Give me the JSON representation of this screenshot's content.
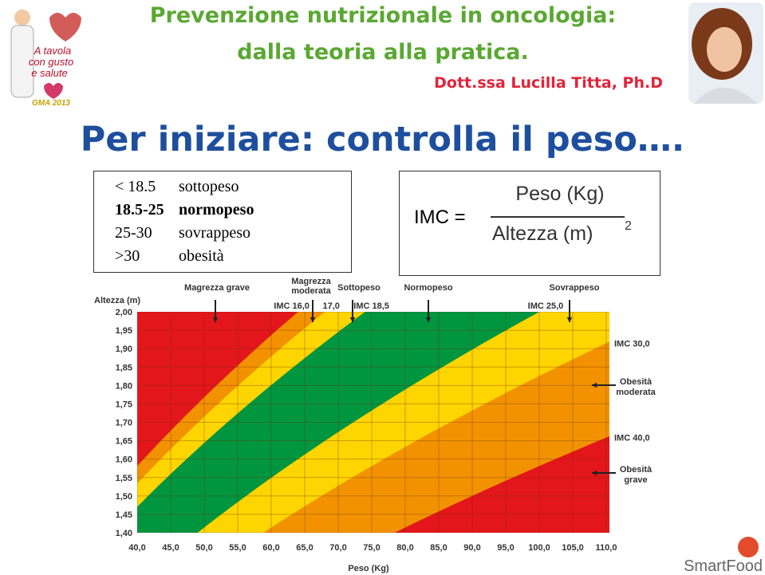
{
  "header": {
    "title_line1": "Prevenzione nutrizionale in oncologia:",
    "title_line2": "dalla teoria alla pratica.",
    "author": "Dott.ssa Lucilla Titta, Ph.D",
    "logo_text": [
      "A tavola",
      "con gusto",
      "e salute"
    ],
    "logo_year": "GMA 2013"
  },
  "heading": "Per iniziare: controlla il peso….",
  "ranges": [
    [
      "< 18.5",
      "sottopeso"
    ],
    [
      "18.5-25",
      "normopeso"
    ],
    [
      "25-30",
      "sovrappeso"
    ],
    [
      ">30",
      "obesità"
    ]
  ],
  "formula": {
    "lhs": "IMC =",
    "numerator": "Peso (Kg)",
    "denominator": "Altezza (m)",
    "exponent": "2"
  },
  "chart": {
    "ylabel": "Altezza (m)",
    "xlabel": "Peso (Kg)",
    "base_color": "#e3161b",
    "xticks": [
      {
        "value": 40,
        "label": "40,0"
      },
      {
        "value": 45,
        "label": "45,0"
      },
      {
        "value": 50,
        "label": "50,0"
      },
      {
        "value": 55,
        "label": "55,0"
      },
      {
        "value": 60,
        "label": "60,0"
      },
      {
        "value": 65,
        "label": "65,0"
      },
      {
        "value": 70,
        "label": "70,0"
      },
      {
        "value": 75,
        "label": "75,0"
      },
      {
        "value": 80,
        "label": "80,0"
      },
      {
        "value": 85,
        "label": "85,0"
      },
      {
        "value": 90,
        "label": "90,0"
      },
      {
        "value": 95,
        "label": "95,0"
      },
      {
        "value": 100,
        "label": "100,0"
      },
      {
        "value": 105,
        "label": "105,0"
      },
      {
        "value": 110,
        "label": "110,0"
      }
    ],
    "yticks": [
      {
        "value": 2.0,
        "label": "2,00"
      },
      {
        "value": 1.95,
        "label": "1,95"
      },
      {
        "value": 1.9,
        "label": "1,90"
      },
      {
        "value": 1.85,
        "label": "1,85"
      },
      {
        "value": 1.8,
        "label": "1,80"
      },
      {
        "value": 1.75,
        "label": "1,75"
      },
      {
        "value": 1.7,
        "label": "1,70"
      },
      {
        "value": 1.65,
        "label": "1,65"
      },
      {
        "value": 1.6,
        "label": "1,60"
      },
      {
        "value": 1.55,
        "label": "1,55"
      },
      {
        "value": 1.5,
        "label": "1,50"
      },
      {
        "value": 1.45,
        "label": "1,45"
      },
      {
        "value": 1.4,
        "label": "1,40"
      }
    ],
    "bands": [
      {
        "value": 16,
        "label": "IMC 16,0",
        "color": "#f39200"
      },
      {
        "value": 17,
        "label": "17,0",
        "color": "#ffd500"
      },
      {
        "value": 18.5,
        "label": "IMC 18,5",
        "color": "#009640"
      },
      {
        "value": 25,
        "label": "IMC 25,0",
        "color": "#ffd500"
      },
      {
        "value": 30,
        "label": "IMC 30,0",
        "color": "#f39200"
      },
      {
        "value": 40,
        "label": "IMC 40,0",
        "color": "#e3161b"
      }
    ],
    "top_labels": [
      [
        "Magrezza grave"
      ],
      [
        "Magrezza",
        "moderata"
      ],
      [
        "Sottopeso"
      ],
      [
        "Normopeso"
      ],
      [
        "Sovrappeso"
      ]
    ],
    "side_labels": [
      [
        "Obesità",
        "moderata"
      ],
      [
        "Obesità",
        "grave"
      ]
    ]
  },
  "footer_logo": "SmartFood"
}
